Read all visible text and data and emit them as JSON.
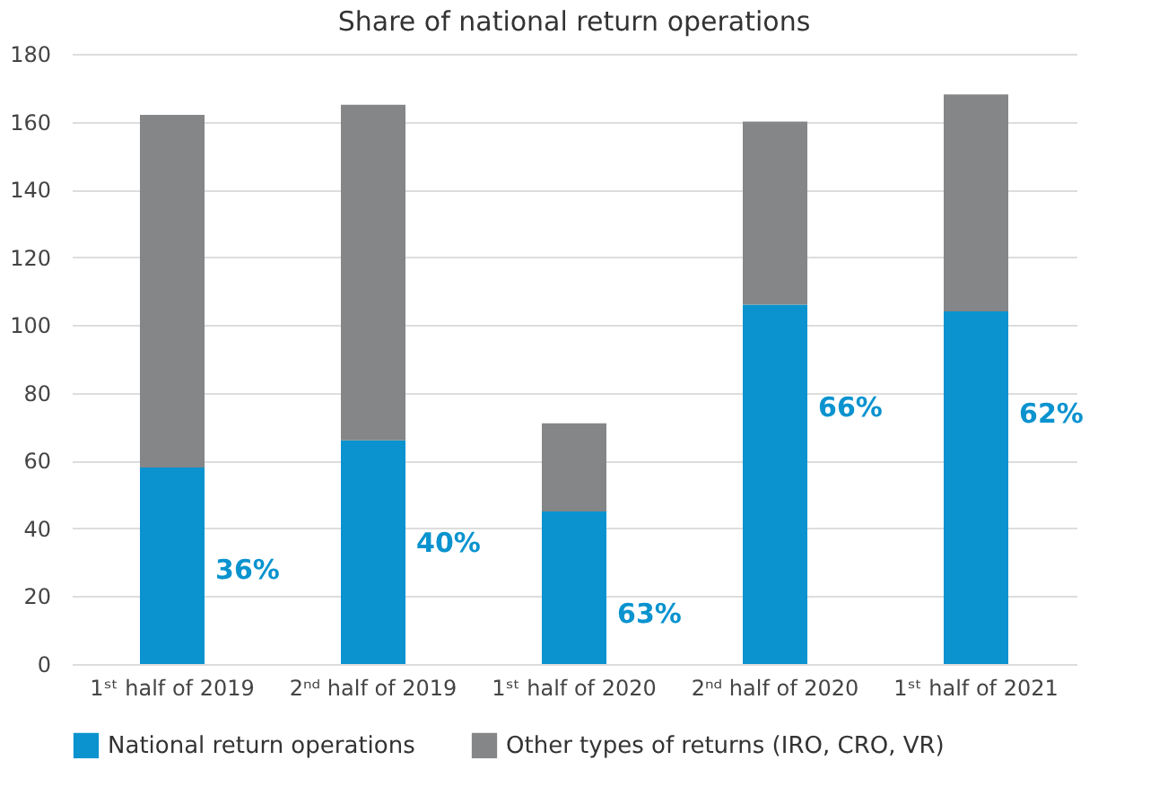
{
  "chart_data": {
    "type": "bar",
    "title": "Share of national return operations",
    "stacked": true,
    "categories": [
      "1ˢᵗ half of 2019",
      "2ⁿᵈ half of 2019",
      "1ˢᵗ half of 2020",
      "2ⁿᵈ half of 2020",
      "1ˢᵗ half of 2021"
    ],
    "series": [
      {
        "name": "National return operations",
        "color": "#0a93cf",
        "values": [
          58,
          66,
          45,
          106,
          104
        ]
      },
      {
        "name": "Other types of returns (IRO, CRO, VR)",
        "color": "#858688",
        "values": [
          104,
          99,
          26,
          54,
          64
        ]
      }
    ],
    "annotations": [
      "36%",
      "40%",
      "63%",
      "66%",
      "62%"
    ],
    "ylim": [
      0,
      180
    ],
    "yticks": [
      0,
      20,
      40,
      60,
      80,
      100,
      120,
      140,
      160,
      180
    ],
    "grid": "y",
    "legend": "bottom"
  }
}
